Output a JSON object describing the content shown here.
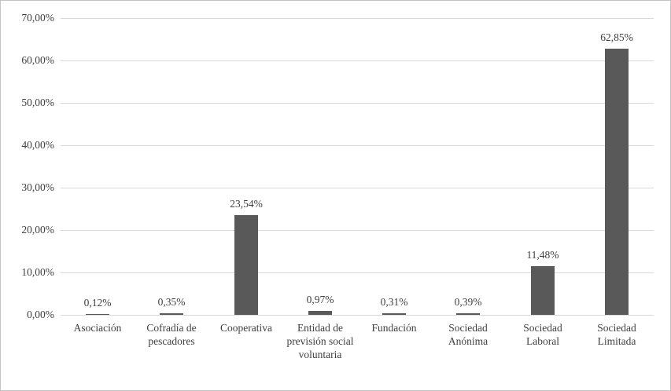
{
  "chart": {
    "bar_color": "#595959",
    "gridline_color": "#d9d9d9",
    "text_color": "#404040",
    "frame_border_color": "#c3c3c3",
    "background_color": "#ffffff"
  },
  "chart_data": {
    "type": "bar",
    "title": "",
    "xlabel": "",
    "ylabel": "",
    "grid": true,
    "legend": false,
    "ylim": [
      0,
      70
    ],
    "categories": [
      "Asociación",
      "Cofradía de pescadores",
      "Cooperativa",
      "Entidad de previsión social voluntaria",
      "Fundación",
      "Sociedad Anónima",
      "Sociedad Laboral",
      "Sociedad Limitada"
    ],
    "values": [
      0.12,
      0.35,
      23.54,
      0.97,
      0.31,
      0.39,
      11.48,
      62.85
    ],
    "value_labels": [
      "0,12%",
      "0,35%",
      "23,54%",
      "0,97%",
      "0,31%",
      "0,39%",
      "11,48%",
      "62,85%"
    ],
    "y_ticks": [
      {
        "value": 0,
        "label": "0,00%"
      },
      {
        "value": 10,
        "label": "10,00%"
      },
      {
        "value": 20,
        "label": "20,00%"
      },
      {
        "value": 30,
        "label": "30,00%"
      },
      {
        "value": 40,
        "label": "40,00%"
      },
      {
        "value": 50,
        "label": "50,00%"
      },
      {
        "value": 60,
        "label": "60,00%"
      },
      {
        "value": 70,
        "label": "70,00%"
      }
    ]
  }
}
